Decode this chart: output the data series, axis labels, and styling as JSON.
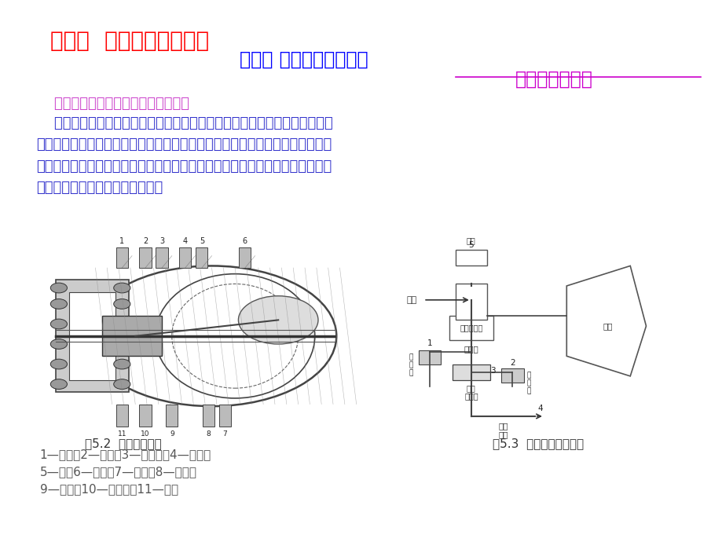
{
  "background_color": "#ffffff",
  "title1": "第五章  制冷剂的节流机构",
  "title1_color": "#ff0000",
  "title1_fontsize": 20,
  "title2": "第一节 手动和浮球调节阀",
  "title2_color": "#0000ff",
  "title2_fontsize": 17,
  "title3": "二、浮球调节阀",
  "title3_color": "#cc00cc",
  "title3_fontsize": 17,
  "line1_text": "    浮球调节阀主要用在氨制冷系统中。",
  "line1_color": "#cc44cc",
  "line1_fontsize": 13,
  "body_text": "    工作原理：当蒸发器的热负荷增大时，制冷剂的蒸发量增加，液位下降，浮\n球下沉并驱动杠杆使阀针开启或开大，高压液态制冷剂经阀孔节流后直接从出液\n管进入蒸发器。当液位达到规定高度时，浮球驱动杠杆使阀针关小或完全关闭阀\n孔，减少或完全停止制冷剂供给。",
  "body_fontsize": 13,
  "body_color": "#3333cc",
  "fig_label1": "图5.2  浮球阀结构图",
  "fig_label1_fontsize": 11,
  "fig_label2": "图5.3  浮球阀接管示意图",
  "fig_label2_fontsize": 11,
  "parts_text1": "1—阀座；2—螺钉；3—加固管；4—阀杆；",
  "parts_text2": "5—轴；6—浮球；7—铆钉；8—杠杆；",
  "parts_text3": "9—螺钉；10—平衡块；11—壳体",
  "parts_fontsize": 11,
  "parts_color": "#555555"
}
